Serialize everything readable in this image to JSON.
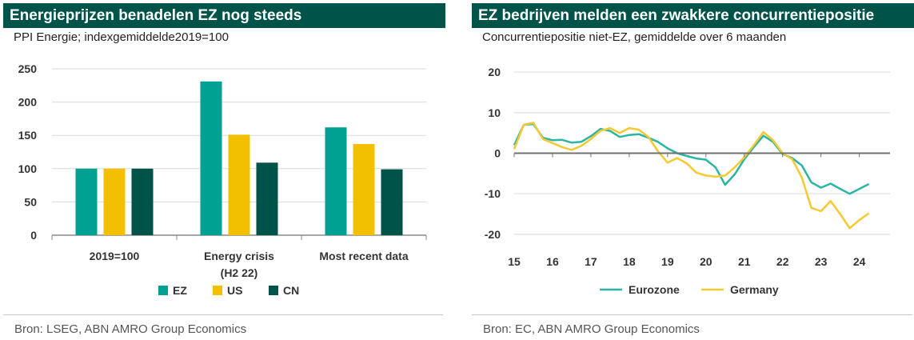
{
  "left_panel": {
    "title": "Energieprijzen benadelen EZ nog steeds",
    "subtitle": "PPI Energie; indexgemiddelde2019=100",
    "source": "Bron: LSEG, ABN AMRO Group Economics"
  },
  "right_panel": {
    "title": "EZ bedrijven melden een zwakkere concurrentiepositie",
    "subtitle": "Concurrentiepositie niet-EZ, gemiddelde over 6 maanden",
    "source": "Bron: EC, ABN AMRO Group Economics"
  },
  "colors": {
    "title_bar": "#005349",
    "ez": "#00a193",
    "us": "#f3c000",
    "cn": "#005349",
    "eurozone": "#2bb5a3",
    "germany": "#f6c832",
    "grid": "#d9d9d9",
    "zero_line": "#707070"
  },
  "chart_data": [
    {
      "type": "bar",
      "categories": [
        "2019=100",
        "Energy crisis (H2 22)",
        "Most recent data"
      ],
      "series": [
        {
          "name": "EZ",
          "values": [
            100,
            231,
            162
          ]
        },
        {
          "name": "US",
          "values": [
            100,
            151,
            137
          ]
        },
        {
          "name": "CN",
          "values": [
            100,
            109,
            99
          ]
        }
      ],
      "ylim": [
        0,
        250
      ],
      "yticks": [
        0,
        50,
        100,
        150,
        200,
        250
      ],
      "grid": true,
      "legend": "bottom"
    },
    {
      "type": "line",
      "xlim": [
        2015,
        2024.8
      ],
      "xticks": [
        2015,
        2016,
        2017,
        2018,
        2019,
        2020,
        2021,
        2022,
        2023,
        2024
      ],
      "xticklabels": [
        "15",
        "16",
        "17",
        "18",
        "19",
        "20",
        "21",
        "22",
        "23",
        "24"
      ],
      "ylim": [
        -22,
        22
      ],
      "yticks": [
        20,
        10,
        0,
        -10,
        -20
      ],
      "grid": true,
      "legend": "bottom",
      "series": [
        {
          "name": "Eurozone",
          "points": [
            [
              2015.0,
              2.0
            ],
            [
              2015.25,
              7.0
            ],
            [
              2015.5,
              7.2
            ],
            [
              2015.75,
              3.8
            ],
            [
              2016.0,
              3.2
            ],
            [
              2016.25,
              3.3
            ],
            [
              2016.5,
              2.6
            ],
            [
              2016.75,
              2.8
            ],
            [
              2017.0,
              4.2
            ],
            [
              2017.25,
              6.0
            ],
            [
              2017.5,
              5.5
            ],
            [
              2017.75,
              4.0
            ],
            [
              2018.0,
              4.5
            ],
            [
              2018.25,
              4.7
            ],
            [
              2018.5,
              3.8
            ],
            [
              2018.75,
              2.8
            ],
            [
              2019.0,
              1.2
            ],
            [
              2019.25,
              0.0
            ],
            [
              2019.5,
              -0.7
            ],
            [
              2019.75,
              -1.3
            ],
            [
              2020.0,
              -1.6
            ],
            [
              2020.25,
              -3.5
            ],
            [
              2020.5,
              -7.8
            ],
            [
              2020.75,
              -5.2
            ],
            [
              2021.0,
              -1.5
            ],
            [
              2021.25,
              1.5
            ],
            [
              2021.5,
              4.3
            ],
            [
              2021.75,
              2.8
            ],
            [
              2022.0,
              -0.2
            ],
            [
              2022.25,
              -1.2
            ],
            [
              2022.5,
              -3.0
            ],
            [
              2022.75,
              -7.2
            ],
            [
              2023.0,
              -8.5
            ],
            [
              2023.25,
              -7.5
            ],
            [
              2023.5,
              -8.8
            ],
            [
              2023.75,
              -10.0
            ],
            [
              2024.0,
              -8.8
            ],
            [
              2024.25,
              -7.6
            ]
          ]
        },
        {
          "name": "Germany",
          "points": [
            [
              2015.0,
              1.0
            ],
            [
              2015.25,
              7.0
            ],
            [
              2015.5,
              7.5
            ],
            [
              2015.75,
              3.5
            ],
            [
              2016.0,
              2.5
            ],
            [
              2016.25,
              1.5
            ],
            [
              2016.5,
              0.8
            ],
            [
              2016.75,
              1.8
            ],
            [
              2017.0,
              3.5
            ],
            [
              2017.25,
              5.5
            ],
            [
              2017.5,
              6.2
            ],
            [
              2017.75,
              5.0
            ],
            [
              2018.0,
              6.2
            ],
            [
              2018.25,
              5.8
            ],
            [
              2018.5,
              4.0
            ],
            [
              2018.75,
              0.5
            ],
            [
              2019.0,
              -2.3
            ],
            [
              2019.25,
              -1.2
            ],
            [
              2019.5,
              -2.5
            ],
            [
              2019.75,
              -4.8
            ],
            [
              2020.0,
              -5.5
            ],
            [
              2020.25,
              -5.8
            ],
            [
              2020.5,
              -5.5
            ],
            [
              2020.75,
              -3.5
            ],
            [
              2021.0,
              -1.0
            ],
            [
              2021.25,
              2.0
            ],
            [
              2021.5,
              5.2
            ],
            [
              2021.75,
              3.2
            ],
            [
              2022.0,
              0.0
            ],
            [
              2022.25,
              -1.5
            ],
            [
              2022.5,
              -6.0
            ],
            [
              2022.75,
              -13.5
            ],
            [
              2023.0,
              -14.3
            ],
            [
              2023.25,
              -11.8
            ],
            [
              2023.5,
              -15.0
            ],
            [
              2023.75,
              -18.5
            ],
            [
              2024.0,
              -16.5
            ],
            [
              2024.25,
              -14.8
            ]
          ]
        }
      ]
    }
  ]
}
